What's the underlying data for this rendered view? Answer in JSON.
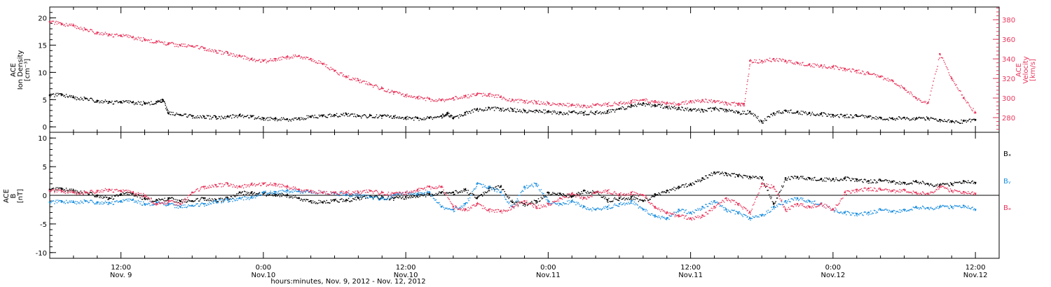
{
  "figure": {
    "xlabel": "hours:minutes, Nov. 9, 2012 - Nov. 12, 2012"
  },
  "colors": {
    "black": "#000000",
    "pink": "#e8365c",
    "blue": "#1a8ee0"
  },
  "chart_data": [
    {
      "type": "scatter",
      "name": "ace-plasma",
      "ylabel": [
        "ACE",
        "Ion Density",
        "[cm⁻³]"
      ],
      "y2label": [
        "ACE",
        "Velocity",
        "[km/s]"
      ],
      "xlim": [
        6,
        86
      ],
      "ylim": [
        -1,
        22
      ],
      "y2lim": [
        265,
        393
      ],
      "yticks": [
        0,
        5,
        10,
        15,
        20
      ],
      "y2ticks": [
        280,
        300,
        320,
        340,
        360,
        380
      ],
      "series": [
        {
          "name": "Ion Density",
          "axis": "left",
          "color": "black",
          "x": [
            6,
            7,
            8,
            9,
            10,
            11,
            12,
            13,
            14,
            15,
            15.5,
            16,
            17,
            18,
            19,
            20,
            21,
            22,
            23,
            24,
            25,
            26,
            27,
            28,
            29,
            30,
            31,
            32,
            33,
            34,
            35,
            36,
            37,
            38,
            39,
            39.5,
            40,
            41,
            42,
            43,
            44,
            45,
            46,
            47,
            48,
            49,
            50,
            51,
            52,
            53,
            54,
            55,
            56,
            57,
            58,
            59,
            60,
            61,
            62,
            63,
            64,
            65,
            66,
            67,
            68,
            69,
            70,
            71,
            72,
            73,
            74,
            75,
            76,
            77,
            78,
            79,
            80,
            81,
            82,
            83,
            84
          ],
          "y": [
            5.8,
            6.0,
            5.4,
            5.2,
            4.8,
            4.6,
            4.6,
            4.5,
            4.4,
            4.6,
            5.0,
            2.5,
            2.2,
            2.0,
            1.9,
            1.8,
            1.9,
            2.2,
            1.9,
            1.6,
            1.5,
            1.4,
            1.6,
            1.9,
            2.1,
            2.2,
            2.3,
            2.0,
            2.1,
            2.0,
            1.9,
            1.7,
            1.6,
            1.7,
            2.0,
            2.5,
            1.6,
            2.6,
            3.2,
            3.5,
            3.3,
            3.2,
            3.0,
            3.0,
            2.8,
            2.6,
            2.7,
            2.6,
            2.7,
            2.9,
            3.3,
            4.0,
            4.3,
            4.0,
            3.7,
            3.5,
            3.2,
            3.1,
            3.4,
            3.1,
            2.6,
            2.8,
            1.0,
            2.5,
            3.0,
            2.7,
            2.5,
            2.4,
            2.2,
            2.1,
            2.0,
            1.9,
            1.7,
            1.6,
            1.7,
            1.5,
            1.6,
            1.3,
            1.0,
            1.1,
            1.3
          ]
        },
        {
          "name": "Velocity",
          "axis": "right",
          "color": "pink",
          "x": [
            6,
            7,
            8,
            9,
            10,
            11,
            12,
            13,
            14,
            15,
            16,
            17,
            18,
            19,
            20,
            21,
            22,
            23,
            24,
            25,
            26,
            27,
            28,
            29,
            30,
            31,
            32,
            33,
            34,
            35,
            36,
            37,
            38,
            39,
            40,
            41,
            42,
            43,
            44,
            45,
            46,
            47,
            48,
            49,
            50,
            51,
            52,
            53,
            54,
            55,
            56,
            57,
            58,
            59,
            60,
            61,
            62,
            63,
            64,
            64.5,
            65,
            66,
            67,
            68,
            69,
            70,
            71,
            72,
            73,
            74,
            75,
            76,
            77,
            78,
            79,
            80,
            81,
            82,
            83,
            84
          ],
          "y": [
            378,
            376,
            374,
            370,
            367,
            365,
            364,
            362,
            360,
            358,
            356,
            354,
            353,
            351,
            348,
            346,
            343,
            340,
            338,
            340,
            342,
            343,
            340,
            335,
            328,
            322,
            318,
            314,
            310,
            306,
            303,
            301,
            299,
            298,
            300,
            302,
            304,
            304,
            301,
            298,
            297,
            296,
            295,
            294,
            293,
            292,
            293,
            294,
            295,
            297,
            298,
            297,
            295,
            294,
            297,
            298,
            297,
            295,
            294,
            294,
            338,
            338,
            340,
            338,
            336,
            334,
            333,
            332,
            330,
            328,
            325,
            322,
            318,
            310,
            300,
            295,
            345,
            320,
            300,
            285
          ]
        }
      ]
    },
    {
      "type": "scatter",
      "name": "ace-magnetic-field",
      "ylabel": [
        "ACE",
        "B",
        "[nT]"
      ],
      "xlim": [
        6,
        86
      ],
      "ylim": [
        -11,
        11
      ],
      "yticks": [
        -10,
        -5,
        0,
        5,
        10
      ],
      "legend": [
        "Bₓ",
        "Bᵧ",
        "Bₔ"
      ],
      "xticks": [
        {
          "x": 12,
          "time": "12:00",
          "date": "Nov. 9"
        },
        {
          "x": 24,
          "time": "0:00",
          "date": "Nov.10"
        },
        {
          "x": 36,
          "time": "12:00",
          "date": "Nov.10"
        },
        {
          "x": 48,
          "time": "0:00",
          "date": "Nov.11"
        },
        {
          "x": 60,
          "time": "12:00",
          "date": "Nov.11"
        },
        {
          "x": 72,
          "time": "0:00",
          "date": "Nov.12"
        },
        {
          "x": 84,
          "time": "12:00",
          "date": "Nov.12"
        }
      ],
      "series": [
        {
          "name": "Bx",
          "color": "black",
          "x": [
            6,
            7,
            8,
            9,
            10,
            11,
            12,
            13,
            14,
            15,
            16,
            17,
            18,
            19,
            20,
            21,
            22,
            23,
            24,
            25,
            26,
            27,
            28,
            29,
            30,
            31,
            32,
            33,
            34,
            35,
            36,
            37,
            38,
            39,
            40,
            41,
            42,
            43,
            44,
            45,
            46,
            47,
            48,
            49,
            50,
            51,
            52,
            53,
            54,
            55,
            56,
            57,
            58,
            59,
            60,
            61,
            62,
            63,
            64,
            65,
            66,
            67,
            68,
            69,
            70,
            71,
            72,
            73,
            74,
            75,
            76,
            77,
            78,
            79,
            80,
            81,
            82,
            83,
            84
          ],
          "y": [
            1.0,
            1.2,
            0.8,
            0.5,
            0.0,
            -0.5,
            0.2,
            0.3,
            -0.5,
            -0.8,
            -0.5,
            -1.0,
            -1.0,
            -0.5,
            -0.8,
            -0.5,
            0.5,
            0.5,
            0.3,
            0.2,
            0.0,
            -0.5,
            -1.0,
            -1.2,
            -0.8,
            -0.8,
            -0.5,
            -0.2,
            -0.3,
            -0.5,
            -0.3,
            0.0,
            0.2,
            0.5,
            0.5,
            1.0,
            -0.5,
            1.2,
            1.5,
            -1.2,
            -1.5,
            -1.0,
            0.5,
            0.3,
            -0.2,
            0.8,
            0.5,
            -0.8,
            -0.5,
            -0.3,
            -1.0,
            0.2,
            0.8,
            1.5,
            2.0,
            3.0,
            4.0,
            3.8,
            3.5,
            3.2,
            3.0,
            -1.5,
            3.0,
            3.2,
            3.0,
            2.8,
            2.8,
            3.0,
            2.8,
            2.5,
            2.6,
            2.4,
            2.2,
            2.5,
            2.0,
            1.8,
            2.0,
            2.5,
            2.2
          ]
        },
        {
          "name": "By",
          "color": "blue",
          "x": [
            6,
            7,
            8,
            9,
            10,
            11,
            12,
            13,
            14,
            15,
            16,
            17,
            18,
            19,
            20,
            21,
            22,
            23,
            24,
            25,
            26,
            27,
            28,
            29,
            30,
            31,
            32,
            33,
            34,
            35,
            36,
            37,
            38,
            39,
            40,
            41,
            42,
            43,
            44,
            45,
            46,
            47,
            48,
            49,
            50,
            51,
            52,
            53,
            54,
            55,
            56,
            57,
            58,
            59,
            60,
            61,
            62,
            63,
            64,
            65,
            66,
            67,
            68,
            69,
            70,
            71,
            72,
            73,
            74,
            75,
            76,
            77,
            78,
            79,
            80,
            81,
            82,
            83,
            84
          ],
          "y": [
            -1.2,
            -1.0,
            -1.2,
            -1.0,
            -1.2,
            -1.3,
            -1.0,
            -0.8,
            -1.5,
            -1.2,
            -1.5,
            -2.0,
            -1.8,
            -1.5,
            -1.0,
            -0.8,
            -0.5,
            -0.3,
            0.5,
            0.6,
            0.8,
            0.7,
            0.7,
            0.5,
            0.4,
            0.2,
            0.0,
            -0.3,
            -0.5,
            0.0,
            0.5,
            0.3,
            0.5,
            -2.0,
            -2.5,
            -1.5,
            2.0,
            1.5,
            0.5,
            -2.0,
            1.5,
            2.0,
            -1.0,
            -1.5,
            -1.0,
            -2.0,
            -2.5,
            -2.0,
            -1.5,
            -1.0,
            -2.5,
            -3.5,
            -4.0,
            -2.5,
            -3.0,
            -2.0,
            -1.0,
            -2.5,
            -3.0,
            -4.0,
            -3.5,
            -2.0,
            -1.0,
            -0.5,
            -1.0,
            -1.5,
            -2.5,
            -3.0,
            -3.2,
            -3.0,
            -2.5,
            -2.8,
            -2.5,
            -2.0,
            -2.2,
            -2.0,
            -2.0,
            -1.8,
            -2.5
          ]
        },
        {
          "name": "Bz",
          "color": "pink",
          "x": [
            6,
            7,
            8,
            9,
            10,
            11,
            12,
            13,
            14,
            15,
            16,
            17,
            18,
            19,
            20,
            21,
            22,
            23,
            24,
            25,
            26,
            27,
            28,
            29,
            30,
            31,
            32,
            33,
            34,
            35,
            36,
            37,
            38,
            39,
            40,
            41,
            42,
            43,
            44,
            45,
            46,
            47,
            48,
            49,
            50,
            51,
            52,
            53,
            54,
            55,
            56,
            57,
            58,
            59,
            60,
            61,
            62,
            63,
            64,
            65,
            66,
            67,
            68,
            69,
            70,
            71,
            72,
            73,
            74,
            75,
            76,
            77,
            78,
            79,
            80,
            81,
            82,
            83,
            84
          ],
          "y": [
            0.8,
            0.8,
            0.5,
            0.5,
            0.8,
            1.0,
            0.8,
            0.5,
            0.0,
            -1.5,
            -1.0,
            -1.5,
            0.5,
            1.5,
            1.8,
            2.0,
            1.5,
            2.0,
            2.0,
            2.0,
            1.5,
            1.0,
            0.8,
            0.5,
            0.5,
            0.6,
            0.5,
            0.8,
            0.5,
            0.3,
            0.5,
            1.0,
            1.5,
            1.5,
            -2.0,
            -2.5,
            -1.5,
            -2.5,
            -2.8,
            -2.0,
            -1.0,
            -2.0,
            -1.5,
            -0.5,
            0.3,
            -0.5,
            0.5,
            0.8,
            0.2,
            0.5,
            0.0,
            -2.0,
            -3.0,
            -3.5,
            -4.0,
            -3.5,
            -2.0,
            -0.5,
            -1.5,
            -3.0,
            2.0,
            1.5,
            -2.5,
            -1.5,
            -2.0,
            -1.5,
            -2.5,
            0.5,
            1.0,
            1.2,
            1.0,
            0.8,
            1.0,
            0.5,
            0.3,
            1.5,
            0.8,
            0.6,
            0.3
          ]
        }
      ]
    }
  ]
}
